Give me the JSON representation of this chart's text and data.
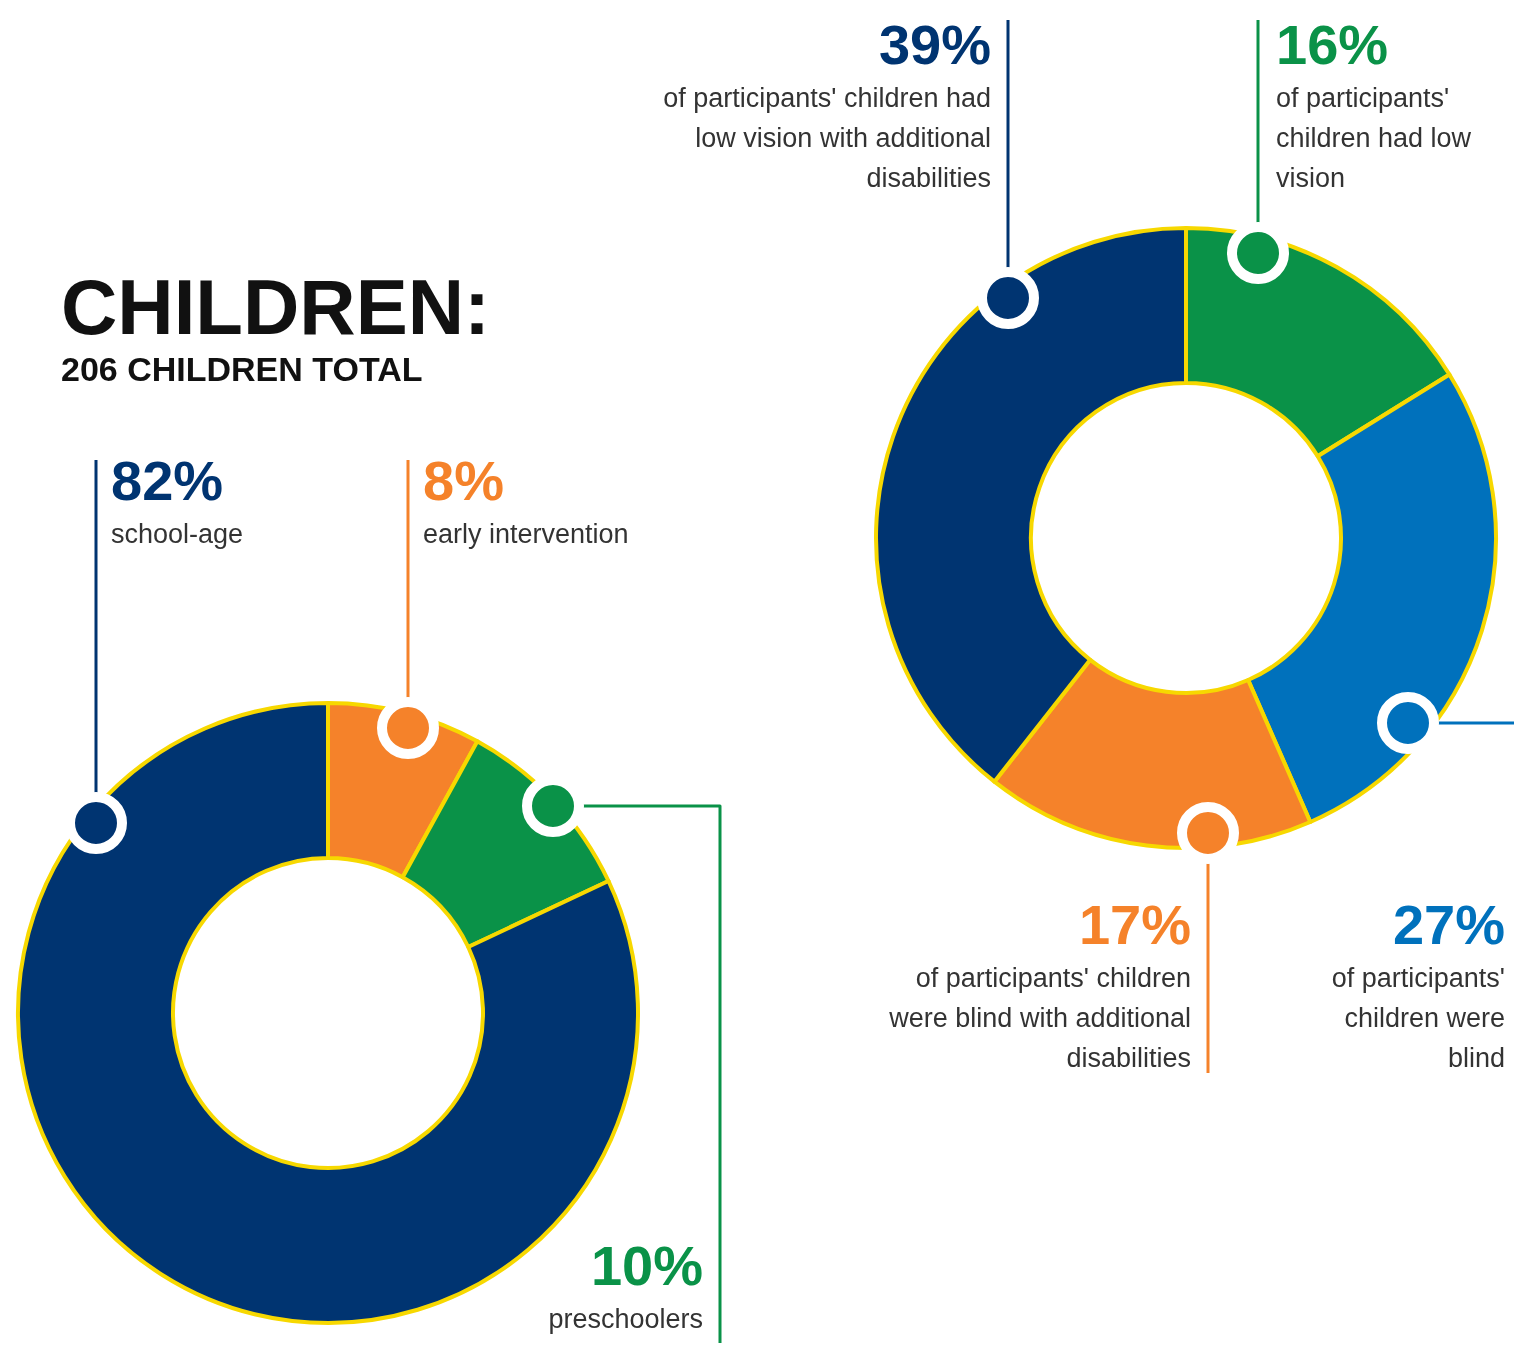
{
  "chart_data": [
    {
      "type": "donut",
      "title": "CHILDREN:",
      "subtitle": "206 CHILDREN TOTAL",
      "categories": [
        "early intervention",
        "preschoolers",
        "school-age"
      ],
      "values": [
        8,
        10,
        82
      ],
      "value_labels": [
        "8%",
        "10%",
        "82%"
      ],
      "colors": [
        "#f5822a",
        "#0a9248",
        "#003471"
      ]
    },
    {
      "type": "donut",
      "categories": [
        "of participants' children had low vision",
        "of participants' children were blind",
        "of participants' children were blind with additional disabilities",
        "of participants' children had low vision with additional disabilities"
      ],
      "values": [
        16,
        27,
        17,
        39
      ],
      "value_labels": [
        "16%",
        "27%",
        "17%",
        "39%"
      ],
      "colors": [
        "#0a9248",
        "#0071bc",
        "#f5822a",
        "#003471"
      ]
    }
  ]
}
